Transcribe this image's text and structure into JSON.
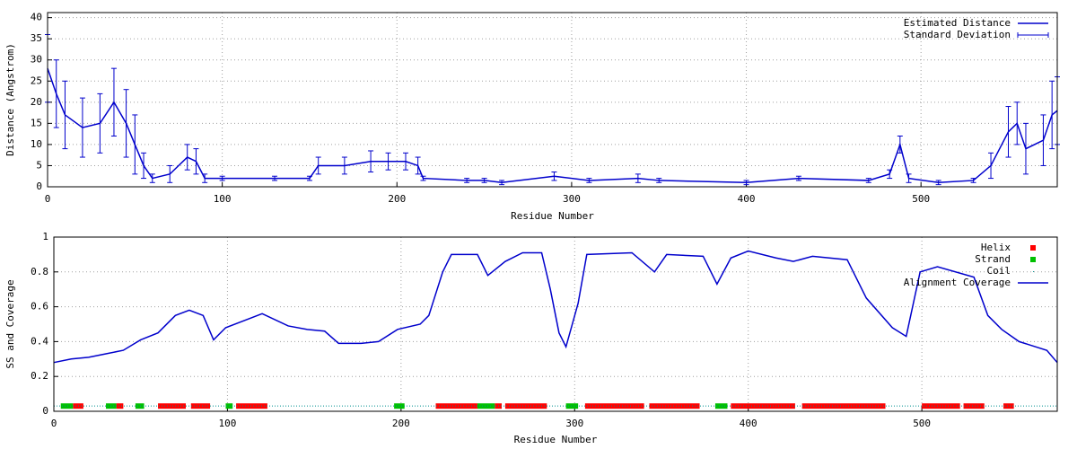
{
  "chart_data": [
    {
      "type": "line",
      "xlabel": "Residue Number",
      "ylabel": "Distance (Angstrom)",
      "xlim": [
        0,
        578
      ],
      "ylim": [
        0,
        41.2
      ],
      "xticks": [
        0,
        100,
        200,
        300,
        400,
        500
      ],
      "yticks": [
        0,
        5,
        10,
        15,
        20,
        25,
        30,
        35,
        40
      ],
      "grid": true,
      "legend": "top-right",
      "x": [
        0,
        5,
        10,
        20,
        30,
        38,
        45,
        50,
        55,
        60,
        70,
        80,
        85,
        90,
        100,
        130,
        150,
        155,
        170,
        185,
        195,
        205,
        212,
        215,
        240,
        250,
        260,
        290,
        310,
        338,
        350,
        400,
        430,
        470,
        482,
        488,
        493,
        510,
        530,
        540,
        550,
        555,
        560,
        570,
        575,
        578
      ],
      "series": [
        {
          "name": "Estimated Distance",
          "style": "line",
          "color": "#0000cc",
          "values": [
            28,
            22,
            17,
            14,
            15,
            20,
            15,
            10,
            5,
            2,
            3,
            7,
            6,
            2,
            2,
            2,
            2,
            5,
            5,
            6,
            6,
            6,
            5,
            2,
            1.5,
            1.5,
            1,
            2.5,
            1.5,
            2,
            1.5,
            1,
            2,
            1.5,
            3,
            10,
            2,
            1,
            1.5,
            5,
            13,
            15,
            9,
            11,
            17,
            18
          ]
        },
        {
          "name": "Standard Deviation",
          "style": "errorbar",
          "color": "#0000cc",
          "values": [
            8,
            8,
            8,
            7,
            7,
            8,
            8,
            7,
            3,
            1,
            2,
            3,
            3,
            1,
            0.5,
            0.5,
            0.5,
            2,
            2,
            2.5,
            2,
            2,
            2,
            0.5,
            0.5,
            0.5,
            0.5,
            1,
            0.5,
            1,
            0.5,
            0.5,
            0.5,
            0.5,
            1,
            2,
            1,
            0.5,
            0.5,
            3,
            6,
            5,
            6,
            6,
            8,
            8
          ]
        }
      ]
    },
    {
      "type": "line",
      "xlabel": "Residue Number",
      "ylabel": "SS and Coverage",
      "xlim": [
        0,
        578
      ],
      "ylim": [
        0,
        1
      ],
      "xticks": [
        0,
        100,
        200,
        300,
        400,
        500
      ],
      "yticks": [
        0,
        0.2,
        0.4,
        0.6,
        0.8,
        1
      ],
      "grid": true,
      "legend": "top-right",
      "series": [
        {
          "name": "Helix",
          "style": "segments",
          "color": "#ff0000",
          "level": 0.03,
          "segments": [
            [
              11,
              17
            ],
            [
              36,
              40
            ],
            [
              60,
              76
            ],
            [
              79,
              90
            ],
            [
              105,
              123
            ],
            [
              220,
              244
            ],
            [
              254,
              258
            ],
            [
              260,
              284
            ],
            [
              306,
              340
            ],
            [
              343,
              372
            ],
            [
              390,
              427
            ],
            [
              431,
              479
            ],
            [
              500,
              522
            ],
            [
              524,
              536
            ],
            [
              547,
              553
            ]
          ]
        },
        {
          "name": "Strand",
          "style": "segments",
          "color": "#00c000",
          "level": 0.03,
          "segments": [
            [
              4,
              11
            ],
            [
              30,
              36
            ],
            [
              47,
              52
            ],
            [
              99,
              103
            ],
            [
              196,
              202
            ],
            [
              244,
              254
            ],
            [
              295,
              302
            ],
            [
              381,
              388
            ]
          ]
        },
        {
          "name": "Coil",
          "style": "dotted",
          "color": "#009090",
          "level": 0.03,
          "segments": [
            [
              0,
              578
            ]
          ]
        },
        {
          "name": "Alignment Coverage",
          "style": "line",
          "color": "#0000cc",
          "x": [
            0,
            10,
            20,
            30,
            40,
            50,
            60,
            70,
            78,
            86,
            92,
            99,
            120,
            135,
            146,
            156,
            164,
            177,
            187,
            198,
            211,
            216,
            224,
            229,
            244,
            250,
            260,
            270,
            281,
            286,
            291,
            295,
            302,
            307,
            333,
            346,
            353,
            374,
            382,
            390,
            400,
            416,
            426,
            437,
            457,
            468,
            483,
            491,
            499,
            509,
            530,
            538,
            546,
            556,
            572,
            578
          ],
          "values": [
            0.28,
            0.3,
            0.31,
            0.33,
            0.35,
            0.41,
            0.45,
            0.55,
            0.58,
            0.55,
            0.41,
            0.48,
            0.56,
            0.49,
            0.47,
            0.46,
            0.39,
            0.39,
            0.4,
            0.47,
            0.5,
            0.55,
            0.8,
            0.9,
            0.9,
            0.78,
            0.86,
            0.91,
            0.91,
            0.7,
            0.45,
            0.37,
            0.62,
            0.9,
            0.91,
            0.8,
            0.9,
            0.89,
            0.73,
            0.88,
            0.92,
            0.88,
            0.86,
            0.89,
            0.87,
            0.65,
            0.48,
            0.43,
            0.8,
            0.83,
            0.77,
            0.55,
            0.47,
            0.4,
            0.35,
            0.28
          ]
        }
      ]
    }
  ]
}
